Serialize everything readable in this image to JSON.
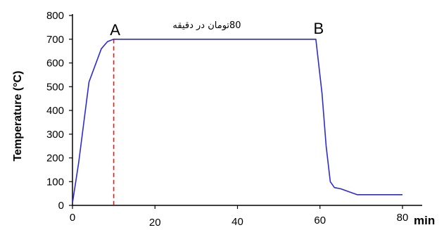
{
  "chart_data": {
    "type": "line",
    "ylabel": "Temperature  (°C)",
    "xlabel": "min",
    "xlim": [
      0,
      80
    ],
    "ylim": [
      0,
      800
    ],
    "x_ticks": [
      0,
      20,
      40,
      60,
      80
    ],
    "y_ticks": [
      0,
      100,
      200,
      300,
      400,
      500,
      600,
      700,
      800
    ],
    "grid": false,
    "series": [
      {
        "color": "#2b2bd0",
        "x": [
          0,
          1.5,
          4,
          7,
          8.5,
          10,
          59,
          60.5,
          61.5,
          62.5,
          63.5,
          65,
          69,
          80
        ],
        "y": [
          10,
          180,
          520,
          660,
          690,
          700,
          700,
          470,
          250,
          100,
          75,
          70,
          45,
          45
        ]
      }
    ],
    "vertical_marker": {
      "x": 10,
      "color": "#e0201a",
      "style": "dashed"
    },
    "point_labels": [
      {
        "text": "A",
        "x": 10
      },
      {
        "text": "B",
        "x": 59
      }
    ],
    "annotation": "80تومان در دقیقه"
  }
}
